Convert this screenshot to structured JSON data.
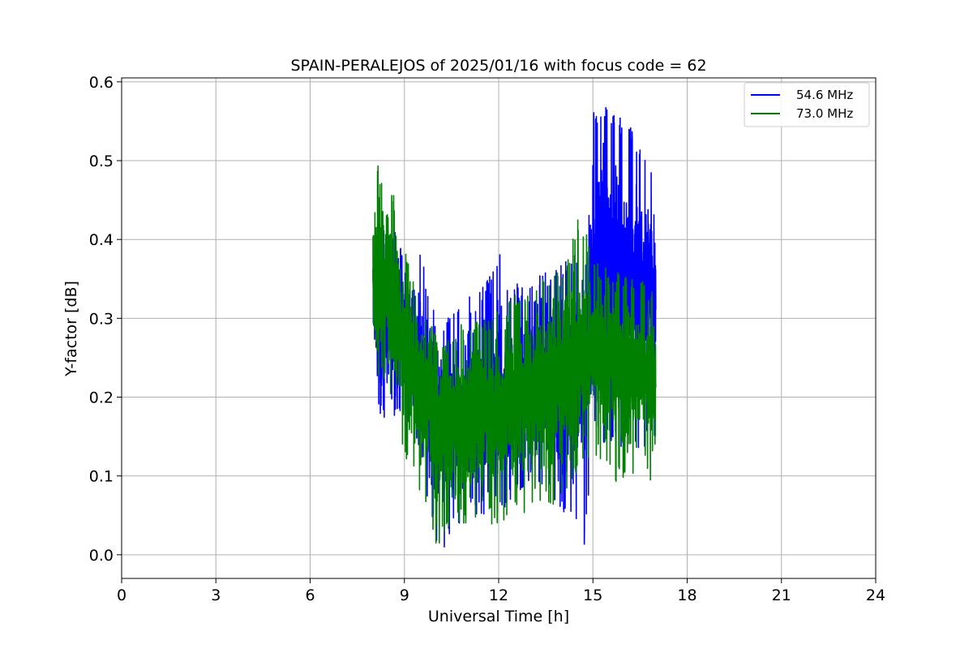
{
  "chart_data": {
    "type": "line",
    "title": "SPAIN-PERALEJOS of 2025/01/16 with focus code = 62",
    "xlabel": "Universal Time [h]",
    "ylabel": "Y-factor [dB]",
    "xlim": [
      0,
      24
    ],
    "ylim": [
      -0.03,
      0.605
    ],
    "xticks": [
      0,
      3,
      6,
      9,
      12,
      15,
      18,
      21,
      24
    ],
    "yticks": [
      0.0,
      0.1,
      0.2,
      0.3,
      0.4,
      0.5,
      0.6
    ],
    "xtick_labels": [
      "0",
      "3",
      "6",
      "9",
      "12",
      "15",
      "18",
      "21",
      "24"
    ],
    "ytick_labels": [
      "0.0",
      "0.1",
      "0.2",
      "0.3",
      "0.4",
      "0.5",
      "0.6"
    ],
    "grid": true,
    "legend_position": "upper right",
    "series": [
      {
        "name": "54.6 MHz",
        "color": "#0000ff",
        "x": [
          8.0,
          8.25,
          8.5,
          8.75,
          9.0,
          9.25,
          9.5,
          9.75,
          10.0,
          10.25,
          10.5,
          10.75,
          11.0,
          11.25,
          11.5,
          11.75,
          12.0,
          12.25,
          12.5,
          12.75,
          13.0,
          13.25,
          13.5,
          13.75,
          14.0,
          14.25,
          14.5,
          14.75,
          15.0,
          15.25,
          15.5,
          15.75,
          16.0,
          16.25,
          16.5,
          16.75,
          17.0
        ],
        "center": [
          0.33,
          0.3,
          0.29,
          0.28,
          0.27,
          0.25,
          0.23,
          0.2,
          0.18,
          0.17,
          0.17,
          0.17,
          0.17,
          0.18,
          0.18,
          0.19,
          0.19,
          0.2,
          0.2,
          0.21,
          0.22,
          0.22,
          0.22,
          0.22,
          0.22,
          0.22,
          0.23,
          0.24,
          0.35,
          0.36,
          0.36,
          0.35,
          0.34,
          0.34,
          0.34,
          0.34,
          0.33
        ],
        "min": [
          0.22,
          0.17,
          0.17,
          0.17,
          0.17,
          0.15,
          0.12,
          0.06,
          0.02,
          0.0,
          0.03,
          0.04,
          0.06,
          0.05,
          0.05,
          0.04,
          0.05,
          0.06,
          0.08,
          0.08,
          0.09,
          0.08,
          0.08,
          0.06,
          0.05,
          0.04,
          0.04,
          0.01,
          0.16,
          0.14,
          0.14,
          0.13,
          0.12,
          0.12,
          0.13,
          0.14,
          0.15
        ],
        "max": [
          0.45,
          0.42,
          0.41,
          0.41,
          0.39,
          0.39,
          0.39,
          0.34,
          0.3,
          0.3,
          0.31,
          0.33,
          0.33,
          0.34,
          0.34,
          0.36,
          0.39,
          0.34,
          0.35,
          0.34,
          0.34,
          0.36,
          0.36,
          0.36,
          0.37,
          0.38,
          0.38,
          0.36,
          0.56,
          0.57,
          0.57,
          0.56,
          0.55,
          0.54,
          0.52,
          0.5,
          0.5
        ]
      },
      {
        "name": "73.0 MHz",
        "color": "#008000",
        "x": [
          8.0,
          8.25,
          8.5,
          8.75,
          9.0,
          9.25,
          9.5,
          9.75,
          10.0,
          10.25,
          10.5,
          10.75,
          11.0,
          11.25,
          11.5,
          11.75,
          12.0,
          12.25,
          12.5,
          12.75,
          13.0,
          13.25,
          13.5,
          13.75,
          14.0,
          14.25,
          14.5,
          14.75,
          15.0,
          15.25,
          15.5,
          15.75,
          16.0,
          16.25,
          16.5,
          16.75,
          17.0
        ],
        "center": [
          0.36,
          0.34,
          0.33,
          0.31,
          0.28,
          0.25,
          0.22,
          0.2,
          0.17,
          0.17,
          0.17,
          0.17,
          0.17,
          0.17,
          0.18,
          0.18,
          0.19,
          0.19,
          0.2,
          0.21,
          0.21,
          0.22,
          0.22,
          0.22,
          0.23,
          0.24,
          0.25,
          0.26,
          0.26,
          0.25,
          0.24,
          0.24,
          0.23,
          0.23,
          0.23,
          0.23,
          0.23
        ],
        "min": [
          0.25,
          0.22,
          0.21,
          0.16,
          0.12,
          0.1,
          0.08,
          0.05,
          0.0,
          0.02,
          0.03,
          0.04,
          0.04,
          0.04,
          0.05,
          0.04,
          0.03,
          0.05,
          0.05,
          0.05,
          0.06,
          0.06,
          0.07,
          0.06,
          0.06,
          0.08,
          0.1,
          0.11,
          0.13,
          0.12,
          0.1,
          0.09,
          0.09,
          0.09,
          0.09,
          0.09,
          0.08
        ],
        "max": [
          0.52,
          0.48,
          0.46,
          0.46,
          0.39,
          0.35,
          0.33,
          0.3,
          0.28,
          0.27,
          0.28,
          0.29,
          0.3,
          0.3,
          0.3,
          0.3,
          0.32,
          0.32,
          0.33,
          0.33,
          0.34,
          0.35,
          0.35,
          0.36,
          0.36,
          0.38,
          0.43,
          0.41,
          0.39,
          0.37,
          0.36,
          0.36,
          0.36,
          0.35,
          0.35,
          0.34,
          0.34
        ]
      }
    ]
  }
}
